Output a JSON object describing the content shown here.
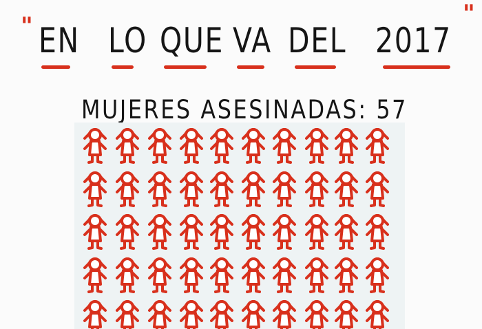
{
  "title": {
    "open_quote": "\"",
    "close_quote": "\"",
    "words": [
      "EN",
      "LO",
      "QUE",
      "VA",
      "DEL",
      "2017"
    ]
  },
  "subtitle": "MUJERES ASESINADAS: 57",
  "colors": {
    "accent": "#d8301c",
    "text": "#151515",
    "background": "#fbfbfb"
  },
  "figure_icon": "girl-figure-icon"
}
